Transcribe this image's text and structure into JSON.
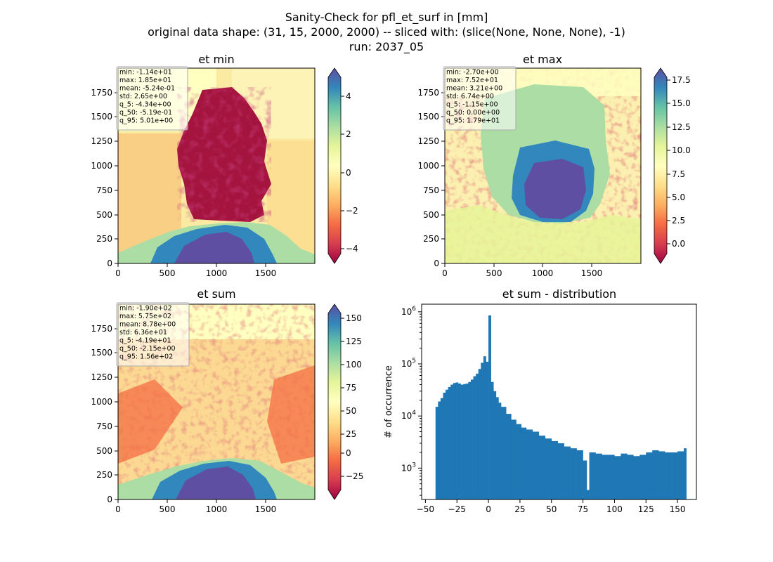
{
  "figure": {
    "title_lines": [
      "Sanity-Check for pfl_et_surf in [mm]",
      "original data shape: (31, 15, 2000, 2000) -- sliced with: (slice(None, None, None), -1)",
      "run: 2037_05"
    ]
  },
  "panels": [
    {
      "title": "et min",
      "type": "heatmap",
      "x_ticks": [
        "0",
        "500",
        "1000",
        "1500"
      ],
      "y_ticks": [
        "0",
        "250",
        "500",
        "750",
        "1000",
        "1250",
        "1500",
        "1750"
      ],
      "xlim": [
        0,
        2000
      ],
      "ylim": [
        0,
        2000
      ],
      "stats": [
        "min: -1.14e+01",
        "max: 1.85e+01",
        "mean: -5.24e-01",
        "std: 2.65e+00",
        "q_5: -4.34e+00",
        "q_50: -5.19e-01",
        "q_95: 5.01e+00"
      ],
      "colorbar": {
        "ticks": [
          "4",
          "2",
          "0",
          "−2",
          "−4"
        ],
        "tick_values": [
          4,
          2,
          0,
          -2,
          -4
        ],
        "range": [
          -4.8,
          5.3
        ]
      }
    },
    {
      "title": "et max",
      "type": "heatmap",
      "x_ticks": [
        "0",
        "500",
        "1000",
        "1500"
      ],
      "y_ticks": [
        "0",
        "250",
        "500",
        "750",
        "1000",
        "1250",
        "1500",
        "1750"
      ],
      "xlim": [
        0,
        2000
      ],
      "ylim": [
        0,
        2000
      ],
      "stats": [
        "min: -2.70e+00",
        "max: 7.52e+01",
        "mean: 3.21e+00",
        "std: 6.74e+00",
        "q_5: -1.15e+00",
        "q_50: 0.00e+00",
        "q_95: 1.79e+01"
      ],
      "colorbar": {
        "ticks": [
          "17.5",
          "15.0",
          "12.5",
          "10.0",
          "7.5",
          "5.0",
          "2.5",
          "0.0"
        ],
        "tick_values": [
          17.5,
          15,
          12.5,
          10,
          7.5,
          5,
          2.5,
          0
        ],
        "range": [
          -1.2,
          18.4
        ]
      }
    },
    {
      "title": "et sum",
      "type": "heatmap",
      "x_ticks": [
        "0",
        "500",
        "1000",
        "1500"
      ],
      "y_ticks": [
        "0",
        "250",
        "500",
        "750",
        "1000",
        "1250",
        "1500",
        "1750"
      ],
      "xlim": [
        0,
        2000
      ],
      "ylim": [
        0,
        2000
      ],
      "stats": [
        "min: -1.90e+02",
        "max: 5.75e+02",
        "mean: 8.78e+00",
        "std: 6.36e+01",
        "q_5: -4.19e+01",
        "q_50: -2.15e+00",
        "q_95: 1.56e+02"
      ],
      "colorbar": {
        "ticks": [
          "150",
          "125",
          "100",
          "75",
          "50",
          "25",
          "0",
          "−25"
        ],
        "tick_values": [
          150,
          125,
          100,
          75,
          50,
          25,
          0,
          -25
        ],
        "range": [
          -42,
          160
        ]
      }
    }
  ],
  "colors": {
    "cmap": [
      "#9e0142",
      "#d53e4f",
      "#f46d43",
      "#fdae61",
      "#fee08b",
      "#ffffbf",
      "#e6f598",
      "#abdda4",
      "#66c2a5",
      "#3288bd",
      "#5e4fa2"
    ],
    "hist_bar": "#1f77b4"
  },
  "chart_data": {
    "type": "bar",
    "title": "et sum - distribution",
    "xlabel": "",
    "ylabel": "# of occurrence",
    "yscale": "log",
    "xlim": [
      -53,
      165
    ],
    "ylim": [
      250,
      1400000
    ],
    "x_ticks": [
      "−50",
      "−25",
      "0",
      "25",
      "50",
      "75",
      "100",
      "125",
      "150"
    ],
    "x_tick_values": [
      -50,
      -25,
      0,
      25,
      50,
      75,
      100,
      125,
      150
    ],
    "y_ticks": [
      {
        "value": 1000,
        "base": "10",
        "exp": "3"
      },
      {
        "value": 10000,
        "base": "10",
        "exp": "4"
      },
      {
        "value": 100000,
        "base": "10",
        "exp": "5"
      },
      {
        "value": 1000000,
        "base": "10",
        "exp": "6"
      }
    ],
    "bins": [
      {
        "x": -42,
        "count": 15000
      },
      {
        "x": -40,
        "count": 19000
      },
      {
        "x": -38,
        "count": 22000
      },
      {
        "x": -36,
        "count": 28000
      },
      {
        "x": -34,
        "count": 32000
      },
      {
        "x": -32,
        "count": 36000
      },
      {
        "x": -30,
        "count": 40000
      },
      {
        "x": -28,
        "count": 43000
      },
      {
        "x": -26,
        "count": 44000
      },
      {
        "x": -24,
        "count": 42000
      },
      {
        "x": -22,
        "count": 40000
      },
      {
        "x": -20,
        "count": 41000
      },
      {
        "x": -18,
        "count": 42000
      },
      {
        "x": -16,
        "count": 45000
      },
      {
        "x": -14,
        "count": 50000
      },
      {
        "x": -12,
        "count": 58000
      },
      {
        "x": -10,
        "count": 65000
      },
      {
        "x": -8,
        "count": 80000
      },
      {
        "x": -6,
        "count": 105000
      },
      {
        "x": -4,
        "count": 140000
      },
      {
        "x": -2,
        "count": 110000
      },
      {
        "x": 0,
        "count": 850000
      },
      {
        "x": 2,
        "count": 45000
      },
      {
        "x": 4,
        "count": 30000
      },
      {
        "x": 6,
        "count": 23000
      },
      {
        "x": 8,
        "count": 18000
      },
      {
        "x": 10,
        "count": 15000
      },
      {
        "x": 14,
        "count": 11000
      },
      {
        "x": 18,
        "count": 8500
      },
      {
        "x": 22,
        "count": 7000
      },
      {
        "x": 26,
        "count": 6000
      },
      {
        "x": 30,
        "count": 5500
      },
      {
        "x": 35,
        "count": 5000
      },
      {
        "x": 40,
        "count": 4200
      },
      {
        "x": 45,
        "count": 3700
      },
      {
        "x": 50,
        "count": 3300
      },
      {
        "x": 55,
        "count": 3000
      },
      {
        "x": 60,
        "count": 2600
      },
      {
        "x": 65,
        "count": 2400
      },
      {
        "x": 70,
        "count": 2200
      },
      {
        "x": 75,
        "count": 1400
      },
      {
        "x": 78,
        "count": 380
      },
      {
        "x": 80,
        "count": 2000
      },
      {
        "x": 85,
        "count": 1900
      },
      {
        "x": 90,
        "count": 1800
      },
      {
        "x": 95,
        "count": 1800
      },
      {
        "x": 100,
        "count": 1700
      },
      {
        "x": 105,
        "count": 1900
      },
      {
        "x": 110,
        "count": 1800
      },
      {
        "x": 115,
        "count": 1700
      },
      {
        "x": 120,
        "count": 1800
      },
      {
        "x": 125,
        "count": 2000
      },
      {
        "x": 130,
        "count": 2200
      },
      {
        "x": 135,
        "count": 2100
      },
      {
        "x": 140,
        "count": 2000
      },
      {
        "x": 145,
        "count": 2000
      },
      {
        "x": 150,
        "count": 2100
      },
      {
        "x": 155,
        "count": 2400
      }
    ]
  }
}
